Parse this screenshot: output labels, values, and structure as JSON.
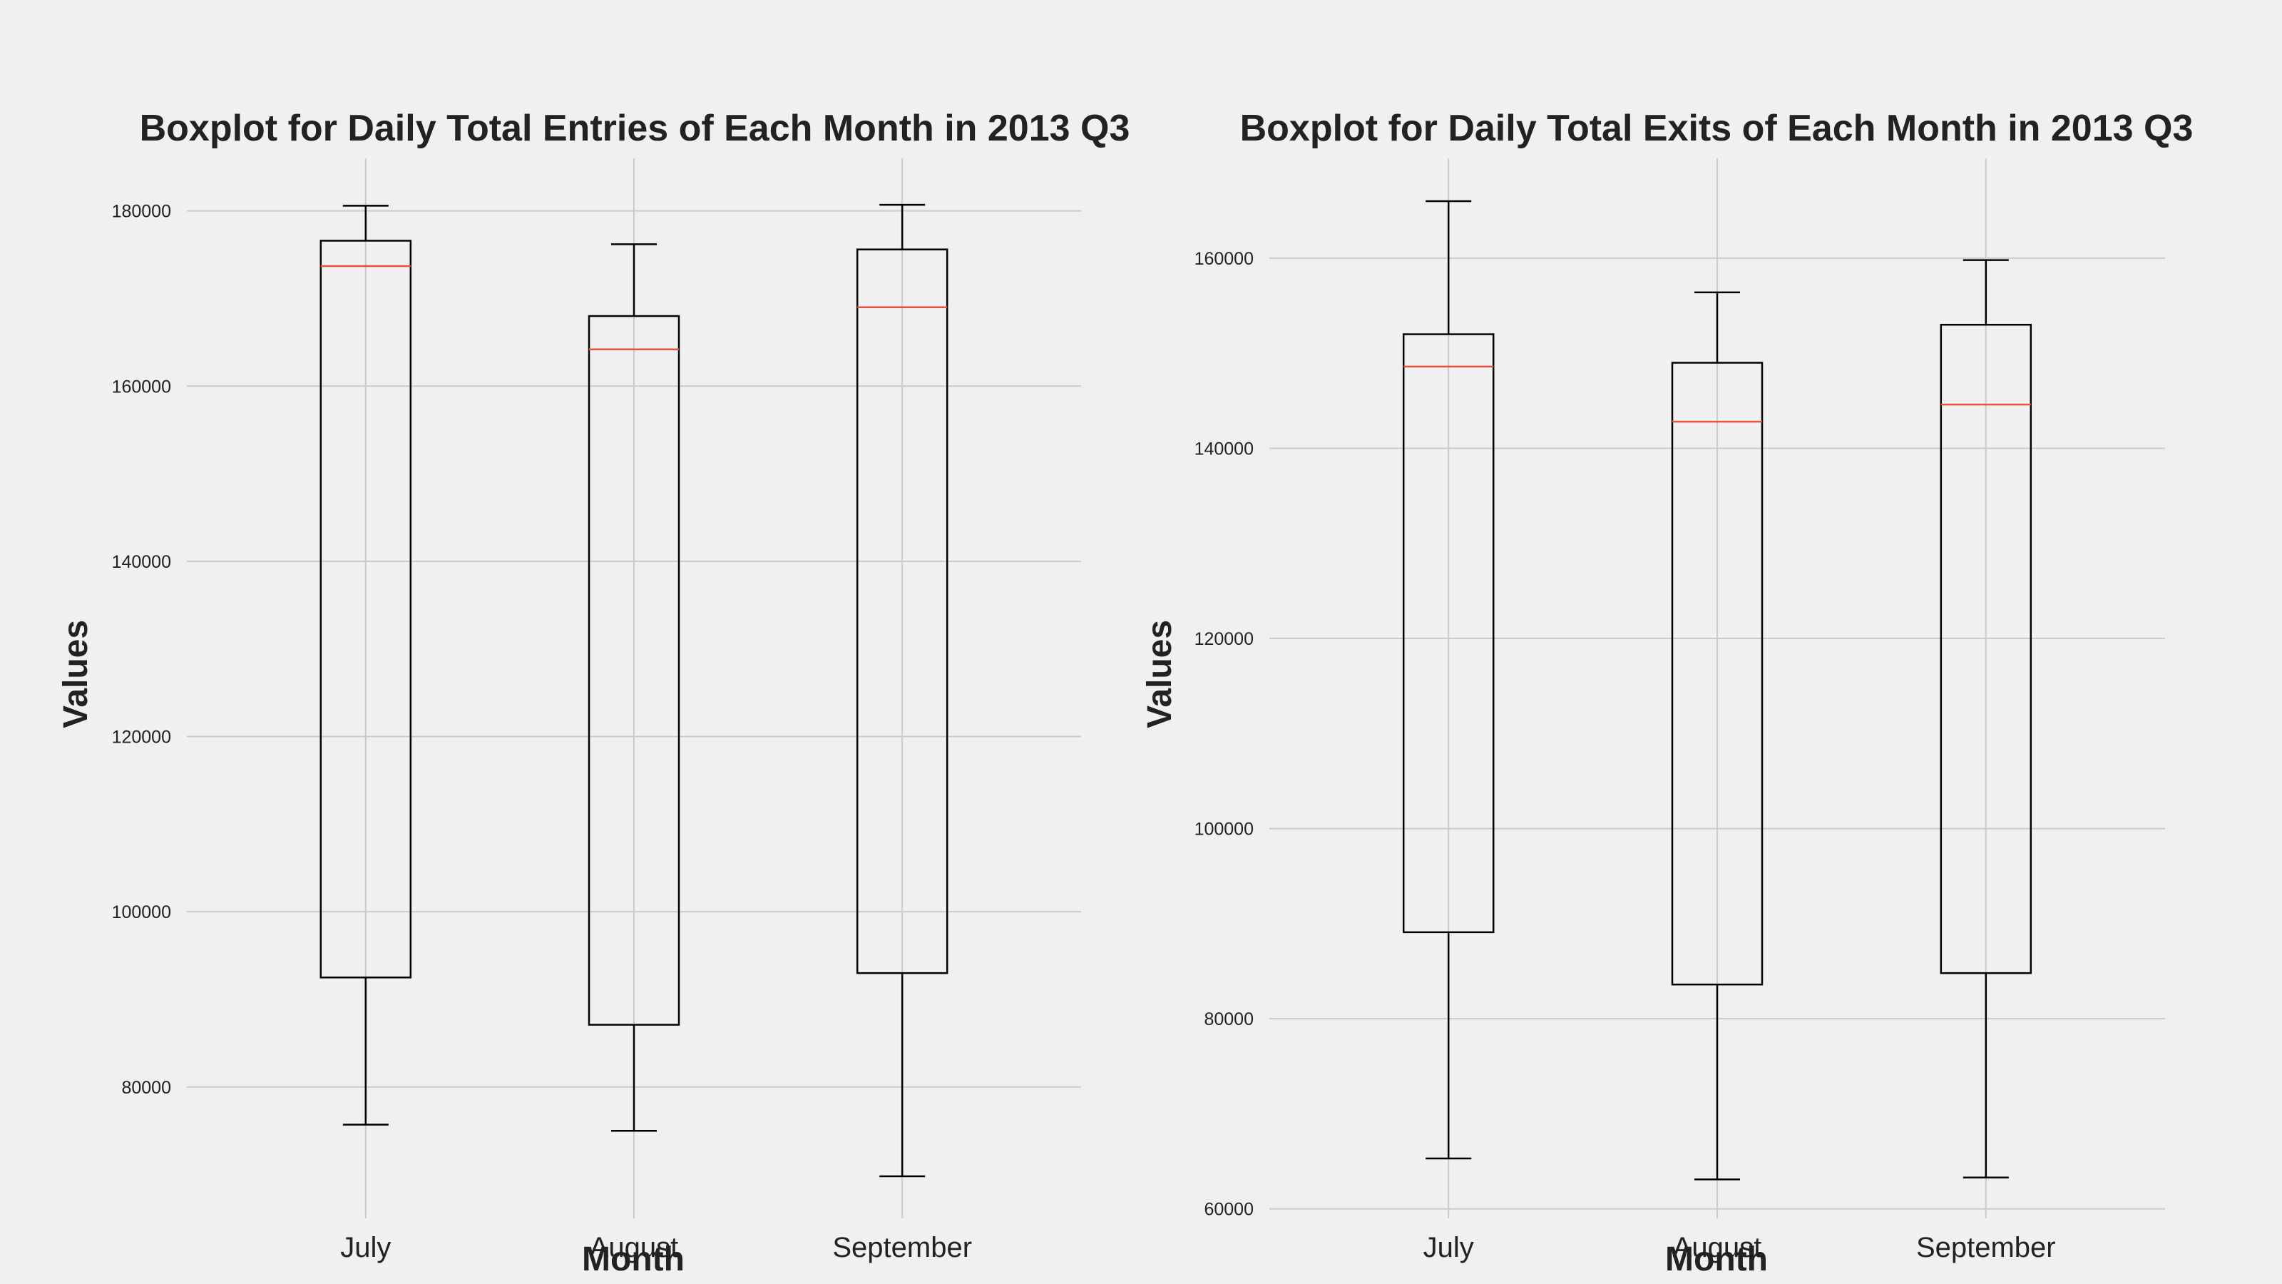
{
  "colors": {
    "background": "#f0f0f0",
    "grid": "#cbcbcb",
    "box": "#000000",
    "median": "#e5533c",
    "text": "#222222"
  },
  "chart_data": [
    {
      "type": "boxplot",
      "title": "Boxplot for Daily Total Entries of Each Month in 2013 Q3",
      "xlabel": "Month",
      "ylabel": "Values",
      "categories": [
        "July",
        "August",
        "September"
      ],
      "ylim": [
        65000,
        186000
      ],
      "yticks": [
        80000,
        100000,
        120000,
        140000,
        160000,
        180000
      ],
      "grid": true,
      "boxes": [
        {
          "whisker_low": 75700,
          "q1": 92500,
          "median": 173700,
          "q3": 176600,
          "whisker_high": 180600
        },
        {
          "whisker_low": 75000,
          "q1": 87100,
          "median": 164200,
          "q3": 168000,
          "whisker_high": 176200
        },
        {
          "whisker_low": 69800,
          "q1": 93000,
          "median": 169000,
          "q3": 175600,
          "whisker_high": 180700
        }
      ]
    },
    {
      "type": "boxplot",
      "title": "Boxplot for Daily Total Exits of Each Month in 2013 Q3",
      "xlabel": "Month",
      "ylabel": "Values",
      "categories": [
        "July",
        "August",
        "September"
      ],
      "ylim": [
        59000,
        170500
      ],
      "yticks": [
        60000,
        80000,
        100000,
        120000,
        140000,
        160000
      ],
      "grid": true,
      "boxes": [
        {
          "whisker_low": 65300,
          "q1": 89100,
          "median": 148600,
          "q3": 152000,
          "whisker_high": 166000
        },
        {
          "whisker_low": 63100,
          "q1": 83600,
          "median": 142800,
          "q3": 149000,
          "whisker_high": 156400
        },
        {
          "whisker_low": 63300,
          "q1": 84800,
          "median": 144600,
          "q3": 153000,
          "whisker_high": 159800
        }
      ]
    }
  ]
}
